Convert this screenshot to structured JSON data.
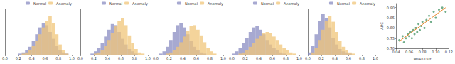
{
  "chart_data": [
    {
      "type": "histogram",
      "bins": [
        0,
        0.05,
        0.1,
        0.15,
        0.2,
        0.25,
        0.3,
        0.35,
        0.4,
        0.45,
        0.5,
        0.55,
        0.6,
        0.65,
        0.7,
        0.75,
        0.8,
        0.85,
        0.9,
        0.95,
        1.0
      ],
      "series": [
        {
          "name": "Normal",
          "color": "#8a8cc2",
          "values": [
            0,
            0,
            0,
            0,
            1,
            2,
            4,
            7,
            12,
            18,
            24,
            28,
            26,
            20,
            14,
            8,
            4,
            2,
            1,
            0
          ]
        },
        {
          "name": "Anomaly",
          "color": "#f0c67a",
          "values": [
            0,
            0,
            0,
            0,
            0,
            1,
            2,
            4,
            8,
            12,
            18,
            24,
            30,
            34,
            28,
            18,
            9,
            4,
            1,
            0
          ]
        }
      ],
      "xlim": [
        0,
        1
      ],
      "xticks": [
        {
          "value": 0,
          "label": "0.0"
        },
        0.2,
        0.4,
        0.6,
        0.8,
        {
          "value": 1,
          "label": "1.0"
        }
      ],
      "ylim": [
        0,
        40
      ],
      "tick_labels": "x",
      "legend": "upper right"
    },
    {
      "type": "histogram",
      "bins": [
        0,
        0.05,
        0.1,
        0.15,
        0.2,
        0.25,
        0.3,
        0.35,
        0.4,
        0.45,
        0.5,
        0.55,
        0.6,
        0.65,
        0.7,
        0.75,
        0.8,
        0.85,
        0.9,
        0.95,
        1.0
      ],
      "series": [
        {
          "name": "Normal",
          "color": "#8a8cc2",
          "values": [
            0,
            0,
            0,
            1,
            3,
            6,
            10,
            16,
            22,
            27,
            26,
            20,
            14,
            9,
            5,
            3,
            1,
            0,
            0,
            0
          ]
        },
        {
          "name": "Anomaly",
          "color": "#f0c67a",
          "values": [
            0,
            0,
            0,
            0,
            1,
            2,
            4,
            8,
            13,
            19,
            25,
            30,
            32,
            26,
            17,
            10,
            5,
            2,
            1,
            0
          ]
        }
      ],
      "xlim": [
        0,
        1
      ],
      "xticks": [
        {
          "value": 0,
          "label": "0.0"
        },
        0.2,
        0.4,
        0.6,
        0.8,
        {
          "value": 1,
          "label": "1.0"
        }
      ],
      "ylim": [
        0,
        40
      ],
      "tick_labels": "x",
      "legend": "upper right"
    },
    {
      "type": "histogram",
      "bins": [
        0,
        0.05,
        0.1,
        0.15,
        0.2,
        0.25,
        0.3,
        0.35,
        0.4,
        0.45,
        0.5,
        0.55,
        0.6,
        0.65,
        0.7,
        0.75,
        0.8,
        0.85,
        0.9,
        0.95,
        1.0
      ],
      "series": [
        {
          "name": "Normal",
          "color": "#8a8cc2",
          "values": [
            0,
            1,
            3,
            7,
            13,
            20,
            26,
            28,
            24,
            18,
            12,
            7,
            4,
            2,
            1,
            0,
            0,
            0,
            0,
            0
          ]
        },
        {
          "name": "Anomaly",
          "color": "#f0c67a",
          "values": [
            0,
            0,
            0,
            1,
            2,
            4,
            7,
            11,
            16,
            21,
            25,
            26,
            22,
            17,
            11,
            6,
            3,
            1,
            0,
            0
          ]
        }
      ],
      "xlim": [
        0,
        1
      ],
      "xticks": [
        {
          "value": 0,
          "label": "0.0"
        },
        0.2,
        0.4,
        0.6,
        0.8,
        {
          "value": 1,
          "label": "1.0"
        }
      ],
      "ylim": [
        0,
        40
      ],
      "tick_labels": "x",
      "legend": "upper right"
    },
    {
      "type": "histogram",
      "bins": [
        0,
        0.05,
        0.1,
        0.15,
        0.2,
        0.25,
        0.3,
        0.35,
        0.4,
        0.45,
        0.5,
        0.55,
        0.6,
        0.65,
        0.7,
        0.75,
        0.8,
        0.85,
        0.9,
        0.95,
        1.0
      ],
      "series": [
        {
          "name": "Normal",
          "color": "#8a8cc2",
          "values": [
            1,
            3,
            6,
            10,
            15,
            20,
            24,
            25,
            22,
            18,
            13,
            9,
            6,
            4,
            2,
            1,
            0,
            0,
            0,
            0
          ]
        },
        {
          "name": "Anomaly",
          "color": "#f0c67a",
          "values": [
            0,
            0,
            1,
            2,
            4,
            7,
            10,
            14,
            17,
            19,
            20,
            19,
            16,
            13,
            9,
            6,
            4,
            2,
            1,
            0
          ]
        }
      ],
      "xlim": [
        0,
        1
      ],
      "xticks": [
        {
          "value": 0,
          "label": "0.0"
        },
        0.2,
        0.4,
        0.6,
        0.8,
        {
          "value": 1,
          "label": "1.0"
        }
      ],
      "ylim": [
        0,
        40
      ],
      "tick_labels": "x",
      "legend": "upper right"
    },
    {
      "type": "histogram",
      "bins": [
        0,
        0.05,
        0.1,
        0.15,
        0.2,
        0.25,
        0.3,
        0.35,
        0.4,
        0.45,
        0.5,
        0.55,
        0.6,
        0.65,
        0.7,
        0.75,
        0.8,
        0.85,
        0.9,
        0.95,
        1.0
      ],
      "series": [
        {
          "name": "Normal",
          "color": "#8a8cc2",
          "values": [
            2,
            8,
            18,
            30,
            36,
            32,
            24,
            15,
            9,
            5,
            3,
            2,
            1,
            0,
            0,
            0,
            0,
            0,
            0,
            0
          ]
        },
        {
          "name": "Anomaly",
          "color": "#f0c67a",
          "values": [
            0,
            2,
            6,
            13,
            22,
            30,
            34,
            29,
            20,
            12,
            7,
            4,
            2,
            1,
            0,
            0,
            0,
            0,
            0,
            0
          ]
        }
      ],
      "xlim": [
        0,
        1
      ],
      "xticks": [
        {
          "value": 0,
          "label": "0.0"
        },
        0.2,
        0.4,
        0.6,
        0.8,
        {
          "value": 1,
          "label": "1.0"
        }
      ],
      "ylim": [
        0,
        40
      ],
      "tick_labels": "x",
      "legend": "upper right"
    },
    {
      "type": "scatter",
      "x_label": "Mean Dist",
      "y_label": "AUC",
      "series": [
        {
          "type": "scatter",
          "color": "#4f9a6e",
          "marker": "circle",
          "x": [
            0.045,
            0.05,
            0.052,
            0.055,
            0.058,
            0.06,
            0.062,
            0.064,
            0.066,
            0.068,
            0.07,
            0.072,
            0.074,
            0.076,
            0.078,
            0.08,
            0.083,
            0.086,
            0.09,
            0.093,
            0.097,
            0.1,
            0.105,
            0.11,
            0.115
          ],
          "values": [
            0.74,
            0.76,
            0.73,
            0.75,
            0.77,
            0.76,
            0.78,
            0.75,
            0.79,
            0.77,
            0.8,
            0.78,
            0.82,
            0.79,
            0.81,
            0.83,
            0.8,
            0.84,
            0.86,
            0.83,
            0.88,
            0.85,
            0.89,
            0.9,
            0.88
          ]
        },
        {
          "type": "line",
          "color": "#e8892c",
          "line_style": "solid",
          "x": [
            0.045,
            0.115
          ],
          "values": [
            0.735,
            0.9
          ]
        }
      ],
      "xlim": [
        0.04,
        0.12
      ],
      "xticks": [
        0.04,
        0.06,
        0.08,
        {
          "value": 0.1,
          "label": "0.10"
        },
        0.12
      ],
      "ylim": [
        0.7,
        0.92
      ],
      "yticks": [
        {
          "value": 0.7,
          "label": "0.70"
        },
        0.75,
        {
          "value": 0.8,
          "label": "0.80"
        },
        0.85,
        {
          "value": 0.9,
          "label": "0.90"
        }
      ]
    }
  ]
}
